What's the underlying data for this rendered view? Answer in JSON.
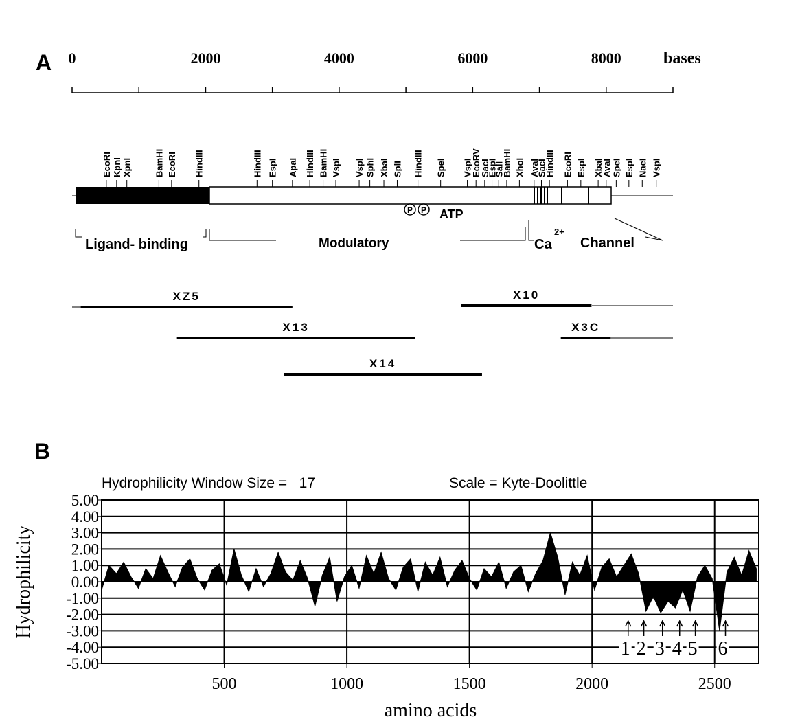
{
  "panel_a": {
    "label": "A",
    "axis": {
      "lim": [
        0,
        9000
      ],
      "ticks": [
        0,
        2000,
        4000,
        6000,
        8000
      ],
      "minor_ticks": [
        0,
        1000,
        2000,
        3000,
        4000,
        5000,
        6000,
        7000,
        8000,
        9000
      ],
      "unit": "bases"
    },
    "sites": [
      {
        "label": "EcoRI",
        "position": 513
      },
      {
        "label": "KpnI",
        "position": 667
      },
      {
        "label": "XpnI",
        "position": 820
      },
      {
        "label": "BamHI",
        "position": 1300
      },
      {
        "label": "EcoRI",
        "position": 1490
      },
      {
        "label": "HindIII",
        "position": 1900
      },
      {
        "label": "HindIII",
        "position": 2770
      },
      {
        "label": "EspI",
        "position": 3000
      },
      {
        "label": "ApaI",
        "position": 3300
      },
      {
        "label": "HindIII",
        "position": 3560
      },
      {
        "label": "BamHI",
        "position": 3760
      },
      {
        "label": "VspI",
        "position": 3950
      },
      {
        "label": "VspI",
        "position": 4300
      },
      {
        "label": "SphI",
        "position": 4460
      },
      {
        "label": "XbaI",
        "position": 4670
      },
      {
        "label": "SplI",
        "position": 4870
      },
      {
        "label": "HindIII",
        "position": 5180
      },
      {
        "label": "SpeI",
        "position": 5520
      },
      {
        "label": "VspI",
        "position": 5920
      },
      {
        "label": "EcoRV",
        "position": 6050
      },
      {
        "label": "SacI",
        "position": 6180
      },
      {
        "label": "EspI",
        "position": 6290
      },
      {
        "label": "SalI",
        "position": 6390
      },
      {
        "label": "BamHI",
        "position": 6510
      },
      {
        "label": "XhoI",
        "position": 6700
      },
      {
        "label": "AvaI",
        "position": 6920
      },
      {
        "label": "SacI",
        "position": 7030
      },
      {
        "label": "HindIII",
        "position": 7150
      },
      {
        "label": "EcoRI",
        "position": 7420
      },
      {
        "label": "EspI",
        "position": 7620
      },
      {
        "label": "XbaI",
        "position": 7880
      },
      {
        "label": "AvaI",
        "position": 8000
      },
      {
        "label": "SpeI",
        "position": 8150
      },
      {
        "label": "EspI",
        "position": 8340
      },
      {
        "label": "NaeI",
        "position": 8540
      },
      {
        "label": "VspI",
        "position": 8750
      }
    ],
    "phospho_label": "P",
    "atp_label": "ATP",
    "domains": [
      "Ligand- binding",
      "Modulatory"
    ],
    "channel": {
      "ion": "Ca",
      "charge": "2+",
      "word": "Channel"
    },
    "clones": [
      {
        "name": "XZ5",
        "start": 130,
        "end": 3300
      },
      {
        "name": "X10",
        "start": 5830,
        "end": 7780
      },
      {
        "name": "X13",
        "start": 1570,
        "end": 5140
      },
      {
        "name": "X3C",
        "start": 7320,
        "end": 8070
      },
      {
        "name": "X14",
        "start": 3170,
        "end": 6140
      }
    ]
  },
  "chart_data": {
    "type": "area",
    "panel_label": "B",
    "title": "Hydrophilicity Window Size =   17",
    "subtitle": "Scale = Kyte-Doolittle",
    "x_label": "amino acids",
    "y_label": "Hydrophilicity",
    "color": "#000000",
    "xlim": [
      0,
      2680
    ],
    "ylim": [
      -5,
      5
    ],
    "xticks": [
      500,
      1000,
      1500,
      2000,
      2500
    ],
    "yticks": [
      {
        "value": 5,
        "label": "5.00"
      },
      {
        "value": 4,
        "label": "4.00"
      },
      {
        "value": 3,
        "label": "3.00"
      },
      {
        "value": 2,
        "label": "2.00"
      },
      {
        "value": 1,
        "label": "1.00"
      },
      {
        "value": 0,
        "label": "0.00"
      },
      {
        "value": -1,
        "label": "-1.00"
      },
      {
        "value": -2,
        "label": "-2.00"
      },
      {
        "value": -3,
        "label": "-3.00"
      },
      {
        "value": -4,
        "label": "-4.00"
      },
      {
        "value": -5,
        "label": "-5.00"
      }
    ],
    "grid": true,
    "x": [
      0,
      30,
      60,
      90,
      120,
      150,
      180,
      210,
      240,
      270,
      300,
      330,
      360,
      390,
      420,
      450,
      480,
      510,
      540,
      570,
      600,
      630,
      660,
      690,
      720,
      750,
      780,
      810,
      840,
      870,
      900,
      930,
      960,
      990,
      1020,
      1050,
      1080,
      1110,
      1140,
      1170,
      1200,
      1230,
      1260,
      1290,
      1320,
      1350,
      1380,
      1410,
      1440,
      1470,
      1500,
      1530,
      1560,
      1590,
      1620,
      1650,
      1680,
      1710,
      1740,
      1770,
      1800,
      1830,
      1860,
      1890,
      1920,
      1950,
      1980,
      2010,
      2040,
      2070,
      2100,
      2130,
      2160,
      2190,
      2220,
      2250,
      2280,
      2310,
      2340,
      2370,
      2400,
      2430,
      2460,
      2490,
      2520,
      2550,
      2580,
      2610,
      2640,
      2670
    ],
    "values": [
      -0.5,
      1.0,
      0.5,
      1.2,
      0.3,
      -0.4,
      0.8,
      0.2,
      1.6,
      0.6,
      -0.3,
      0.9,
      1.4,
      0.2,
      -0.5,
      0.7,
      1.1,
      -0.2,
      2.0,
      0.4,
      -0.6,
      0.8,
      -0.3,
      0.5,
      1.8,
      0.6,
      0.1,
      1.3,
      0.2,
      -1.5,
      0.4,
      1.5,
      -1.2,
      0.3,
      1.0,
      -0.4,
      1.6,
      0.5,
      1.8,
      0.2,
      -0.5,
      0.9,
      1.4,
      -0.6,
      1.2,
      0.4,
      1.5,
      -0.3,
      0.7,
      1.3,
      0.2,
      -0.5,
      0.8,
      0.3,
      1.2,
      -0.4,
      0.6,
      1.0,
      -0.6,
      0.5,
      1.3,
      3.0,
      1.5,
      -0.8,
      1.2,
      0.4,
      1.6,
      -0.5,
      0.9,
      1.4,
      0.3,
      1.0,
      1.7,
      0.5,
      -1.8,
      -0.9,
      -1.9,
      -1.2,
      -1.6,
      -0.5,
      -1.8,
      0.3,
      1.0,
      0.2,
      -3.0,
      0.6,
      1.5,
      0.4,
      1.9,
      0.8
    ],
    "annotations": [
      {
        "text": "1",
        "x": 2136
      },
      {
        "text": "2",
        "x": 2200
      },
      {
        "text": "3",
        "x": 2276
      },
      {
        "text": "4",
        "x": 2346
      },
      {
        "text": "5",
        "x": 2410
      },
      {
        "text": "6",
        "x": 2533
      }
    ]
  }
}
